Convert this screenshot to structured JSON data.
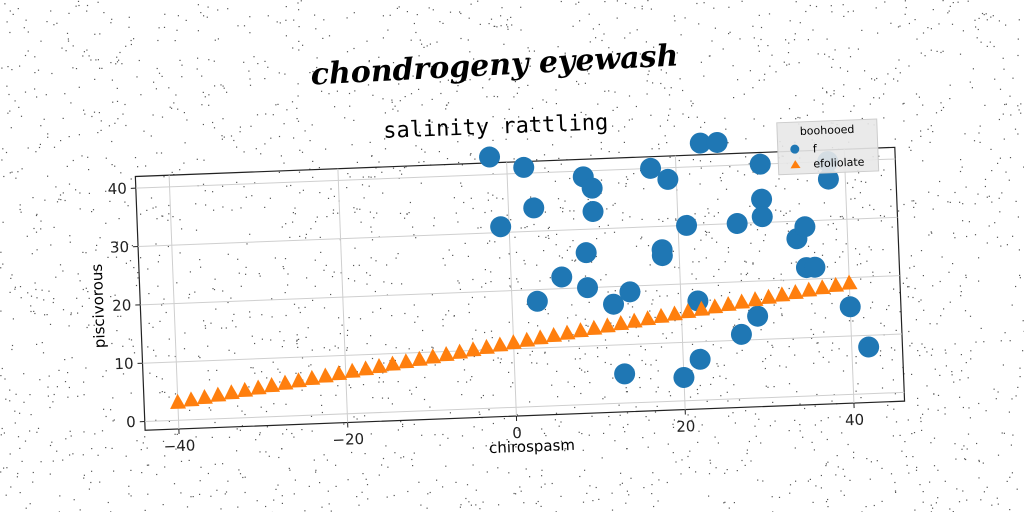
{
  "suptitle": "chondrogeny eyewash",
  "chart_data": {
    "type": "scatter",
    "title": "salinity rattling",
    "xlabel": "chirospasm",
    "ylabel": "piscivorous",
    "xlim": [
      -44,
      46
    ],
    "ylim": [
      -1.5,
      42
    ],
    "xticks": [
      -40,
      -20,
      0,
      20,
      40
    ],
    "yticks": [
      0,
      10,
      20,
      30,
      40
    ],
    "grid": true,
    "legend": {
      "title": "boohooed",
      "placement": "top-right"
    },
    "series": [
      {
        "name": "f",
        "marker": "circle",
        "color": "#1f77b4",
        "points": [
          [
            -2,
            43
          ],
          [
            2,
            41
          ],
          [
            -1,
            31
          ],
          [
            3,
            34
          ],
          [
            3,
            18
          ],
          [
            6,
            22
          ],
          [
            9,
            39
          ],
          [
            10,
            37
          ],
          [
            10,
            33
          ],
          [
            9,
            26
          ],
          [
            9,
            20
          ],
          [
            12,
            17
          ],
          [
            14,
            19
          ],
          [
            13,
            5
          ],
          [
            17,
            40
          ],
          [
            19,
            38
          ],
          [
            18,
            26
          ],
          [
            18,
            25
          ],
          [
            21,
            30
          ],
          [
            22,
            17
          ],
          [
            20,
            4
          ],
          [
            22,
            7
          ],
          [
            23,
            44
          ],
          [
            25,
            44
          ],
          [
            27,
            30
          ],
          [
            27,
            11
          ],
          [
            30,
            40
          ],
          [
            30,
            34
          ],
          [
            30,
            31
          ],
          [
            29,
            14
          ],
          [
            34,
            27
          ],
          [
            35,
            29
          ],
          [
            35,
            22
          ],
          [
            36,
            22
          ],
          [
            38,
            40
          ],
          [
            38,
            37
          ],
          [
            40,
            15
          ],
          [
            42,
            8
          ]
        ]
      },
      {
        "name": "efoliolate",
        "marker": "triangle",
        "color": "#ff7f0e",
        "x_start": -40,
        "x_end": 40,
        "y_start": 3,
        "y_end": 19,
        "count": 51
      }
    ]
  }
}
